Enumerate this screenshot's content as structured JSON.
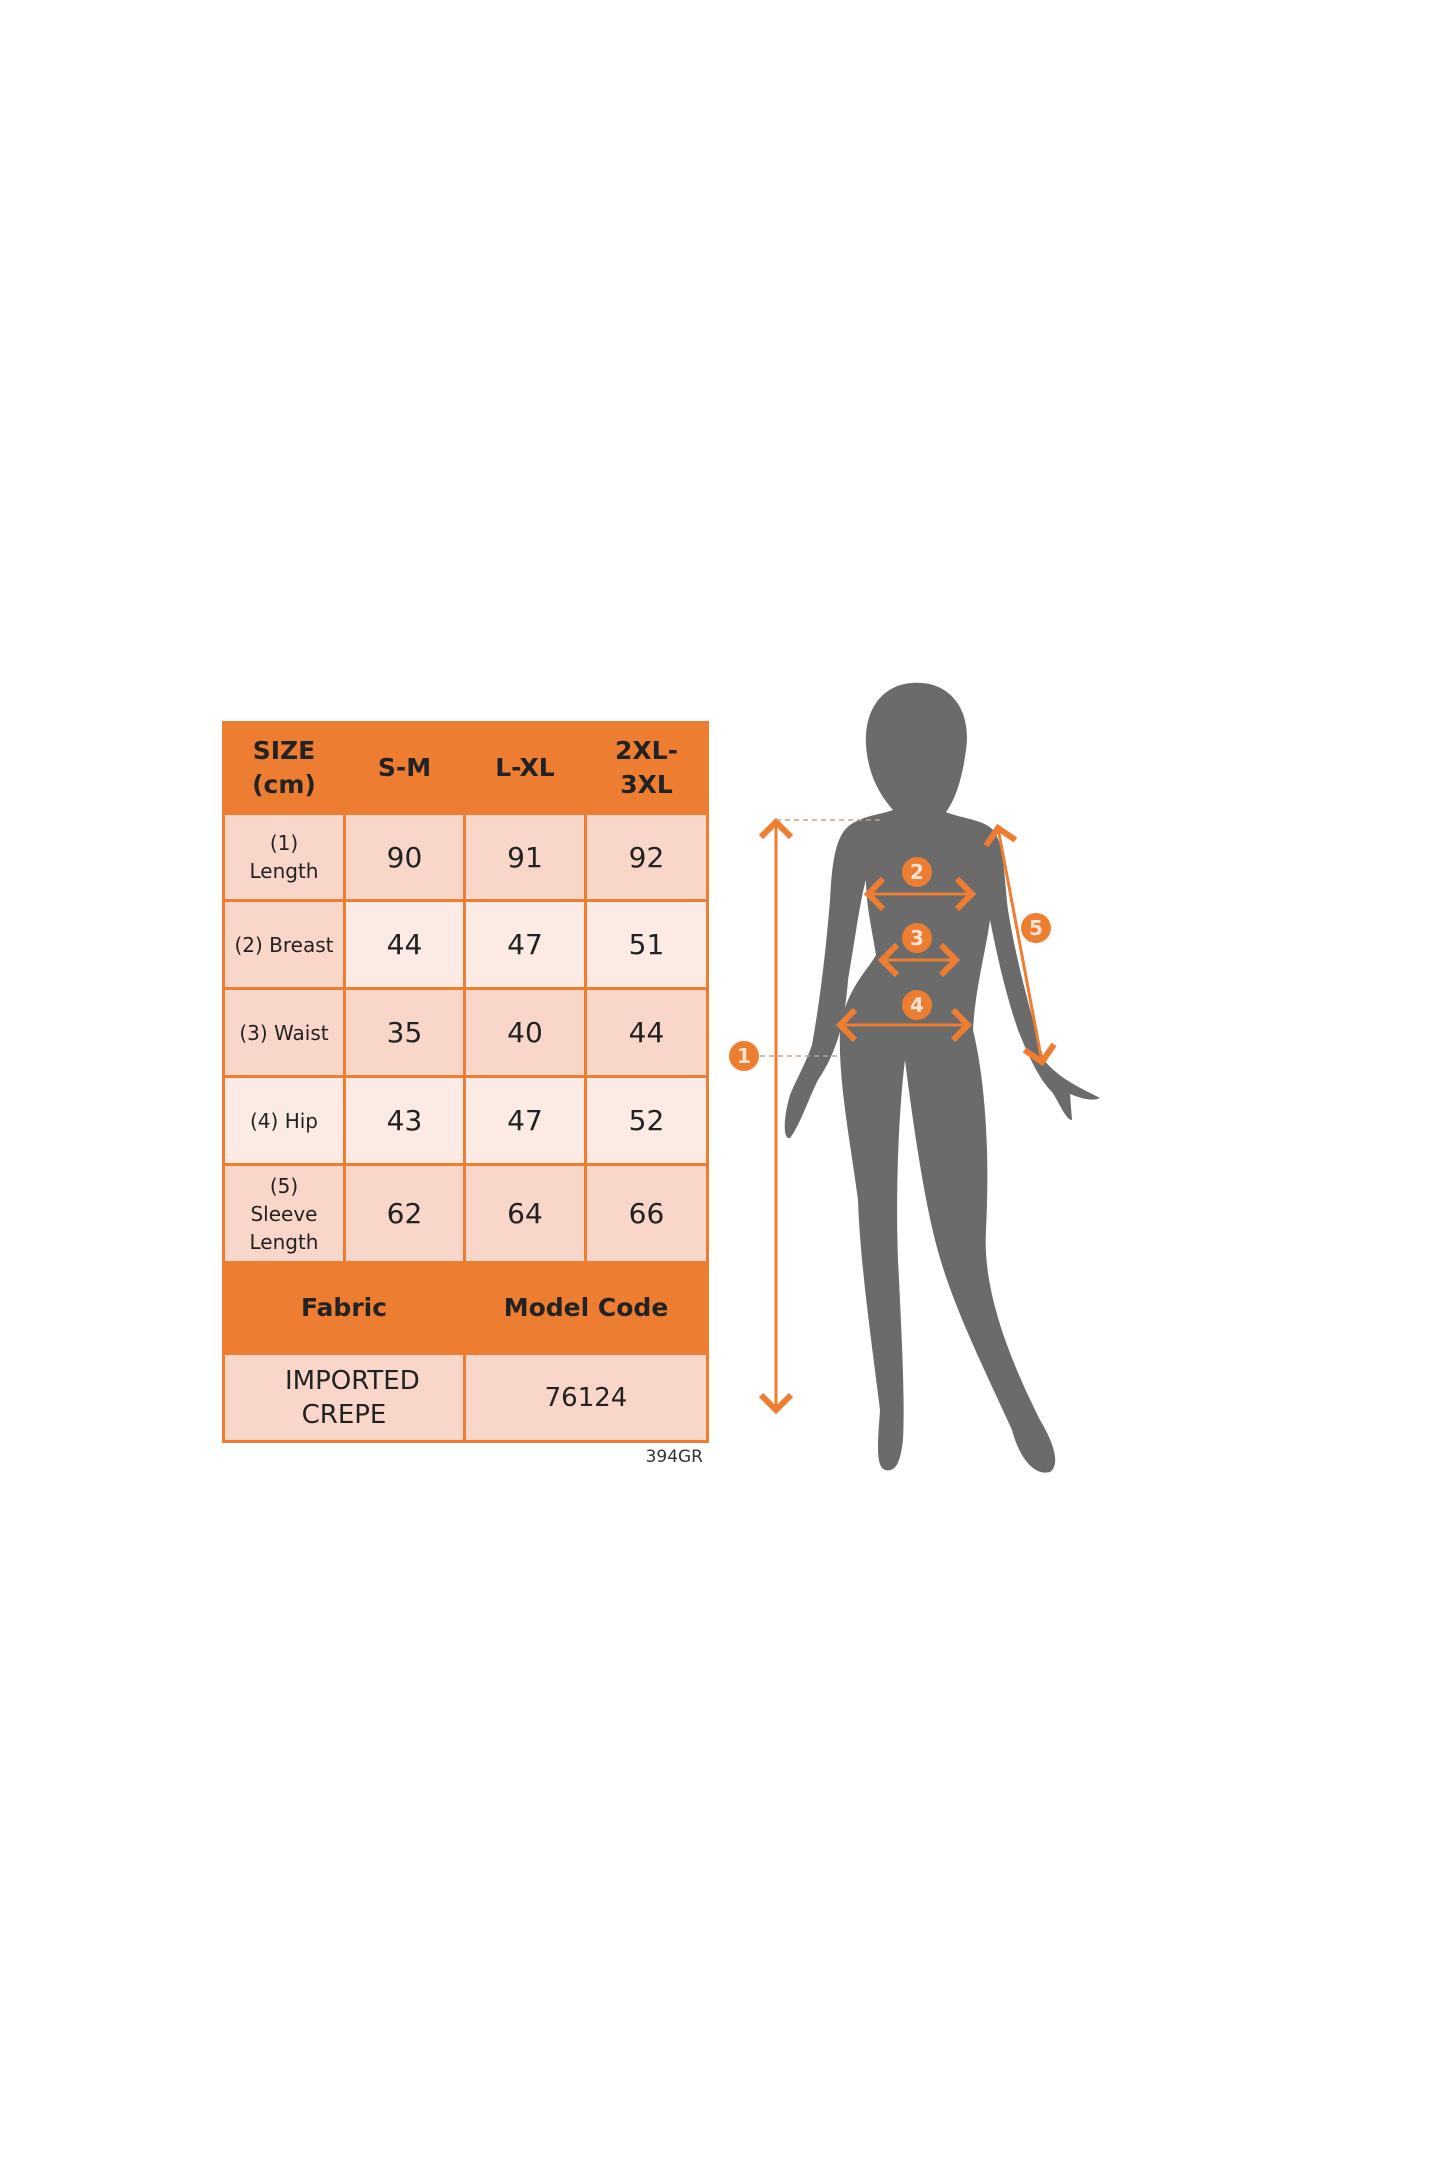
{
  "table": {
    "header": [
      "SIZE (cm)",
      "S-M",
      "L-XL",
      "2XL-3XL"
    ],
    "rows": [
      {
        "label": "(1) Length",
        "values": [
          "90",
          "91",
          "92"
        ]
      },
      {
        "label": "(2) Breast",
        "values": [
          "44",
          "47",
          "51"
        ]
      },
      {
        "label": "(3) Waist",
        "values": [
          "35",
          "40",
          "44"
        ]
      },
      {
        "label": "(4) Hip",
        "values": [
          "43",
          "47",
          "52"
        ]
      },
      {
        "label": "(5) Sleeve Length",
        "values": [
          "62",
          "64",
          "66"
        ]
      }
    ],
    "fabric_label": "Fabric",
    "model_code_label": "Model Code",
    "fabric_value": "IMPORTED CREPE",
    "model_code_value": "76124"
  },
  "note": "394GR",
  "figure": {
    "markers": [
      "1",
      "2",
      "3",
      "4",
      "5"
    ]
  },
  "colors": {
    "accent": "#ED7D31",
    "silhouette": "#6B6B6B",
    "cell_dark": "#F8D7CA",
    "cell_light": "#FCEBE4"
  }
}
